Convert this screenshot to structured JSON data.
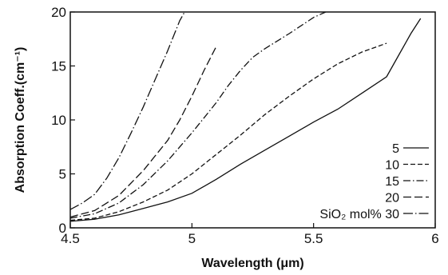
{
  "chart_data": {
    "type": "line",
    "title": "",
    "xlabel": "Wavelength (μm)",
    "ylabel": "Absorption Coeff.(cm⁻¹)",
    "xlim": [
      4.5,
      6.0
    ],
    "ylim": [
      0,
      20
    ],
    "xticks": [
      4.5,
      5,
      5.5,
      6
    ],
    "xtick_labels": [
      "4.5",
      "5",
      "5.5",
      "6"
    ],
    "yticks": [
      0,
      5,
      10,
      15,
      20
    ],
    "ytick_labels": [
      "0",
      "5",
      "10",
      "15",
      "20"
    ],
    "grid": false,
    "legend_placement": "bottom-right",
    "legend_prefix": "SiO₂ mol%",
    "series": [
      {
        "name": "5",
        "dash": "",
        "points": [
          [
            4.5,
            0.6
          ],
          [
            4.6,
            0.8
          ],
          [
            4.7,
            1.2
          ],
          [
            4.8,
            1.8
          ],
          [
            4.9,
            2.4
          ],
          [
            5.0,
            3.2
          ],
          [
            5.1,
            4.5
          ],
          [
            5.2,
            5.9
          ],
          [
            5.3,
            7.2
          ],
          [
            5.4,
            8.5
          ],
          [
            5.5,
            9.8
          ],
          [
            5.6,
            11.0
          ],
          [
            5.7,
            12.5
          ],
          [
            5.8,
            14.0
          ],
          [
            5.85,
            16.0
          ],
          [
            5.9,
            18.0
          ],
          [
            5.94,
            19.4
          ]
        ]
      },
      {
        "name": "10",
        "dash": "6,3",
        "points": [
          [
            4.5,
            0.7
          ],
          [
            4.6,
            0.9
          ],
          [
            4.7,
            1.5
          ],
          [
            4.8,
            2.4
          ],
          [
            4.9,
            3.5
          ],
          [
            5.0,
            5.0
          ],
          [
            5.1,
            6.8
          ],
          [
            5.2,
            8.6
          ],
          [
            5.3,
            10.5
          ],
          [
            5.4,
            12.2
          ],
          [
            5.5,
            13.8
          ],
          [
            5.6,
            15.2
          ],
          [
            5.7,
            16.3
          ],
          [
            5.8,
            17.1
          ]
        ]
      },
      {
        "name": "15",
        "dash": "9,3,1.5,3",
        "points": [
          [
            4.5,
            0.9
          ],
          [
            4.6,
            1.3
          ],
          [
            4.7,
            2.3
          ],
          [
            4.8,
            4.0
          ],
          [
            4.9,
            6.2
          ],
          [
            5.0,
            8.8
          ],
          [
            5.05,
            10.2
          ],
          [
            5.1,
            11.6
          ],
          [
            5.15,
            13.2
          ],
          [
            5.2,
            14.6
          ],
          [
            5.25,
            15.8
          ],
          [
            5.3,
            16.6
          ],
          [
            5.4,
            18.0
          ],
          [
            5.5,
            19.5
          ],
          [
            5.55,
            20.0
          ]
        ]
      },
      {
        "name": "20",
        "dash": "10,4",
        "points": [
          [
            4.5,
            1.0
          ],
          [
            4.6,
            1.6
          ],
          [
            4.7,
            3.0
          ],
          [
            4.8,
            5.3
          ],
          [
            4.9,
            8.1
          ],
          [
            4.95,
            10.0
          ],
          [
            5.0,
            12.2
          ],
          [
            5.05,
            14.6
          ],
          [
            5.1,
            16.8
          ]
        ]
      },
      {
        "name": "30",
        "dash": "12,3,1.5,3",
        "points": [
          [
            4.5,
            1.7
          ],
          [
            4.55,
            2.3
          ],
          [
            4.6,
            3.1
          ],
          [
            4.65,
            4.6
          ],
          [
            4.7,
            6.5
          ],
          [
            4.75,
            8.8
          ],
          [
            4.8,
            11.2
          ],
          [
            4.85,
            13.8
          ],
          [
            4.9,
            16.4
          ],
          [
            4.95,
            19.2
          ],
          [
            4.97,
            20.0
          ]
        ]
      }
    ]
  }
}
